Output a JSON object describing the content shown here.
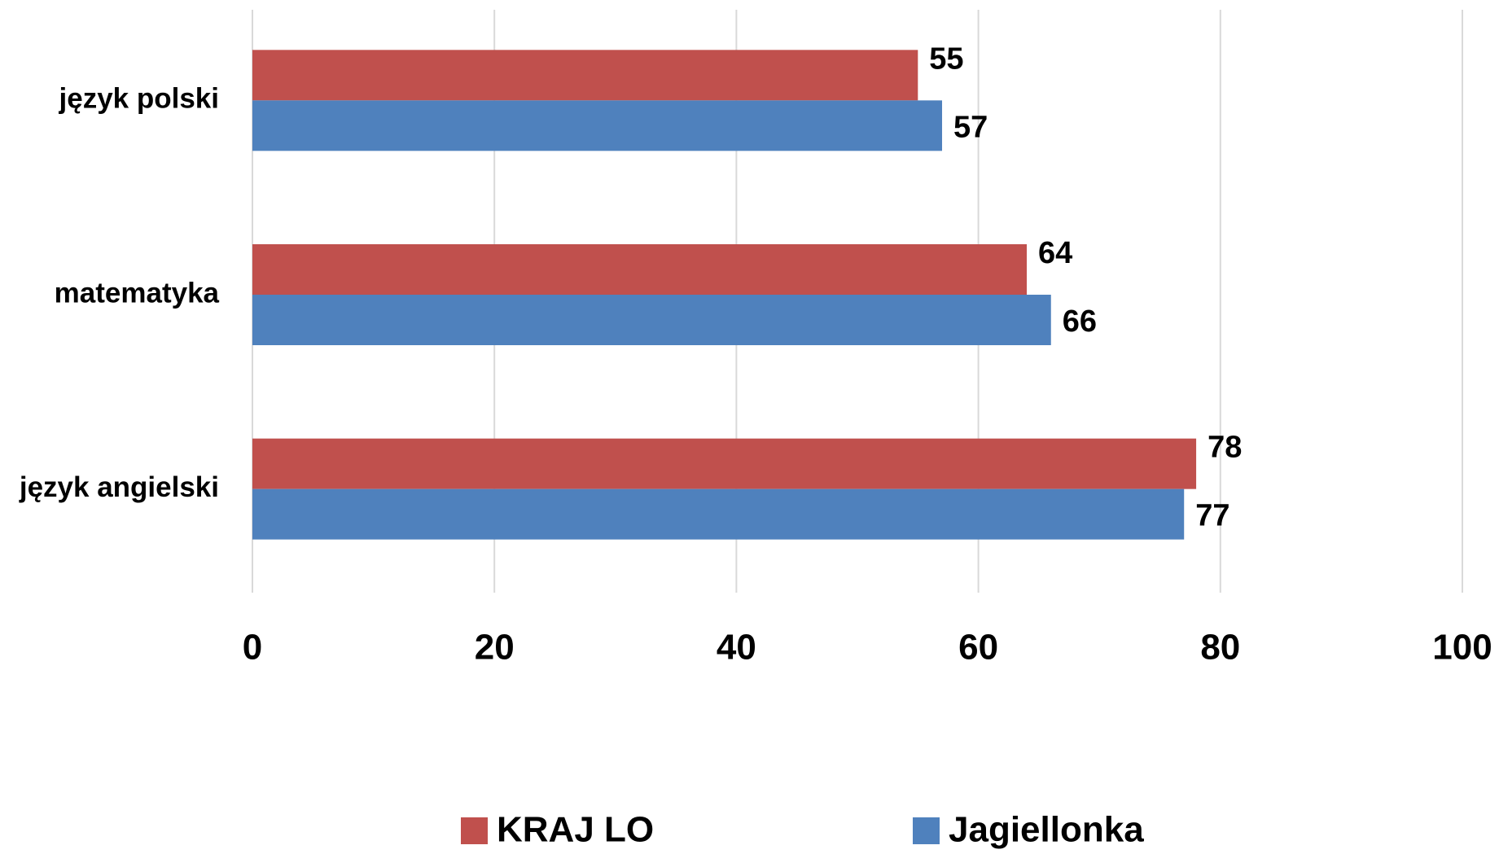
{
  "chart_data": {
    "type": "bar",
    "orientation": "horizontal",
    "categories": [
      "język polski",
      "matematyka",
      "język angielski"
    ],
    "series": [
      {
        "name": "KRAJ LO",
        "color": "#c0504d",
        "values": [
          55,
          64,
          78
        ]
      },
      {
        "name": "Jagiellonka",
        "color": "#4f81bd",
        "values": [
          57,
          66,
          77
        ]
      }
    ],
    "xlim": [
      0,
      100
    ],
    "xticks": [
      0,
      20,
      40,
      60,
      80,
      100
    ],
    "grid": true,
    "legend": "bottom"
  }
}
